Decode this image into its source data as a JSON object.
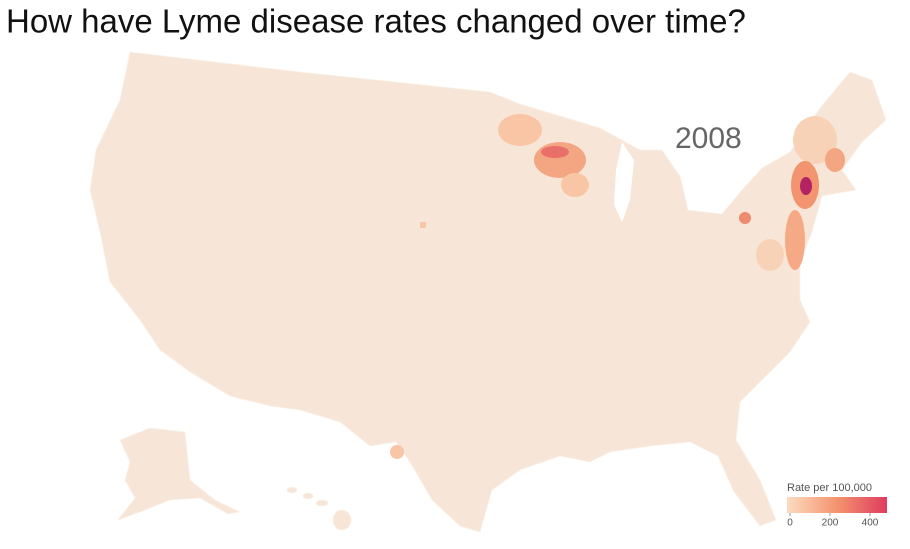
{
  "title": "How have Lyme disease rates changed over time?",
  "year": "2008",
  "legend": {
    "title": "Rate per 100,000",
    "domain": [
      0,
      500
    ],
    "ticks": [
      0,
      200,
      400
    ],
    "colors": [
      "#fbdcc0",
      "#f4936e",
      "#de3c5f"
    ]
  }
}
